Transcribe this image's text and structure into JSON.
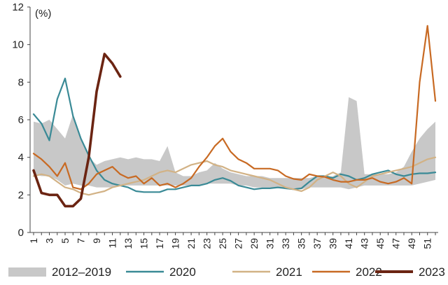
{
  "chart_data": {
    "type": "line",
    "unit_label": "(%)",
    "ylim": [
      0,
      12
    ],
    "y_ticks": [
      0,
      2,
      4,
      6,
      8,
      10,
      12
    ],
    "x_range": [
      1,
      52
    ],
    "x_tick_labels": [
      1,
      3,
      5,
      7,
      9,
      11,
      13,
      15,
      17,
      19,
      21,
      23,
      25,
      27,
      29,
      31,
      33,
      35,
      37,
      39,
      41,
      43,
      45,
      47,
      49,
      51
    ],
    "grid": false,
    "legend_position": "bottom",
    "band": {
      "name": "2012–2019",
      "color": "#c8c8c8",
      "upper": [
        5.9,
        5.8,
        6.0,
        5.5,
        5.0,
        6.3,
        5.0,
        4.0,
        3.6,
        3.8,
        3.9,
        4.0,
        3.9,
        4.0,
        3.9,
        3.9,
        3.8,
        4.6,
        3.2,
        3.0,
        3.0,
        3.2,
        3.3,
        3.7,
        3.4,
        3.2,
        3.1,
        3.0,
        3.0,
        3.0,
        2.9,
        2.9,
        2.9,
        2.9,
        2.9,
        2.9,
        3.0,
        2.9,
        3.0,
        3.2,
        7.2,
        7.0,
        3.1,
        3.1,
        3.1,
        3.1,
        3.2,
        3.5,
        4.3,
        5.0,
        5.5,
        5.9
      ],
      "lower": [
        3.1,
        3.0,
        3.0,
        2.8,
        2.5,
        2.6,
        2.5,
        2.5,
        2.4,
        2.4,
        2.4,
        2.5,
        2.5,
        2.5,
        2.5,
        2.5,
        2.5,
        2.5,
        2.5,
        2.5,
        2.5,
        2.5,
        2.6,
        2.6,
        2.6,
        2.6,
        2.5,
        2.5,
        2.4,
        2.4,
        2.4,
        2.4,
        2.3,
        2.3,
        2.3,
        2.4,
        2.4,
        2.4,
        2.4,
        2.4,
        2.3,
        2.4,
        2.5,
        2.5,
        2.5,
        2.5,
        2.5,
        2.5,
        2.5,
        2.6,
        2.7,
        2.8
      ]
    },
    "series": [
      {
        "name": "2020",
        "color": "#3a8a96",
        "width": 2.2,
        "values": [
          6.3,
          5.8,
          4.9,
          7.1,
          8.2,
          6.2,
          5.0,
          4.1,
          3.3,
          2.8,
          2.6,
          2.5,
          2.4,
          2.2,
          2.15,
          2.15,
          2.15,
          2.3,
          2.3,
          2.4,
          2.5,
          2.5,
          2.6,
          2.8,
          2.9,
          2.75,
          2.5,
          2.4,
          2.3,
          2.35,
          2.35,
          2.4,
          2.35,
          2.3,
          2.35,
          2.7,
          3.0,
          3.0,
          2.9,
          3.1,
          3.0,
          2.8,
          2.9,
          3.1,
          3.2,
          3.3,
          3.1,
          3.0,
          3.1,
          3.15,
          3.15,
          3.2
        ]
      },
      {
        "name": "2021",
        "color": "#d2b285",
        "width": 2.2,
        "values": [
          3.0,
          3.1,
          3.0,
          2.7,
          2.4,
          2.3,
          2.1,
          2.0,
          2.1,
          2.2,
          2.4,
          2.5,
          2.6,
          2.7,
          2.8,
          3.0,
          3.2,
          3.3,
          3.2,
          3.4,
          3.6,
          3.7,
          3.8,
          3.6,
          3.5,
          3.3,
          3.2,
          3.1,
          3.0,
          2.9,
          2.8,
          2.6,
          2.4,
          2.3,
          2.2,
          2.4,
          2.8,
          3.0,
          3.2,
          3.0,
          2.6,
          2.4,
          2.7,
          3.0,
          3.1,
          3.2,
          3.3,
          3.4,
          3.5,
          3.7,
          3.9,
          4.0
        ]
      },
      {
        "name": "2022",
        "color": "#c86a23",
        "width": 2.2,
        "values": [
          4.2,
          3.9,
          3.5,
          3.0,
          3.7,
          2.4,
          2.3,
          2.6,
          3.1,
          3.3,
          3.5,
          3.1,
          2.9,
          3.0,
          2.6,
          2.9,
          2.5,
          2.6,
          2.4,
          2.6,
          2.9,
          3.5,
          4.0,
          4.6,
          5.0,
          4.3,
          3.9,
          3.7,
          3.4,
          3.4,
          3.4,
          3.3,
          3.0,
          2.85,
          2.8,
          3.1,
          3.0,
          2.95,
          2.8,
          2.7,
          2.7,
          2.8,
          2.8,
          2.9,
          2.7,
          2.6,
          2.7,
          2.9,
          2.6,
          8.0,
          11.0,
          7.0
        ]
      },
      {
        "name": "2023",
        "color": "#6b2412",
        "width": 3.6,
        "values": [
          3.3,
          2.1,
          2.0,
          2.0,
          1.4,
          1.4,
          1.8,
          4.0,
          7.5,
          9.5,
          9.0,
          8.3
        ]
      }
    ]
  }
}
